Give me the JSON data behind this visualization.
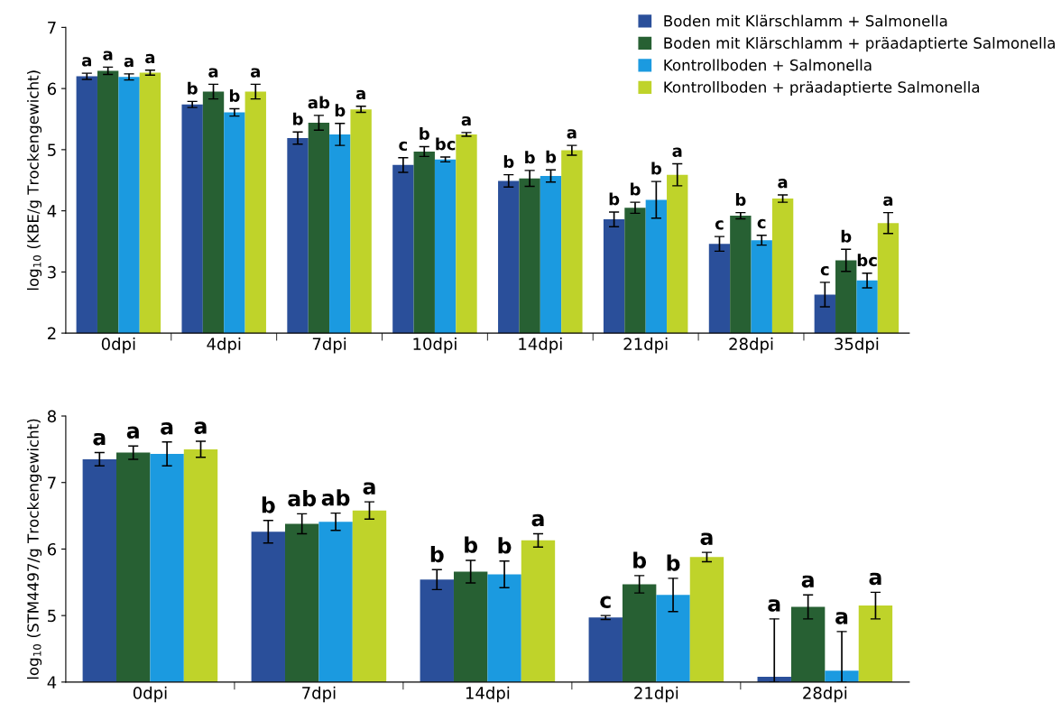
{
  "chart_data": [
    {
      "type": "bar",
      "ylabel": "log$_{10}$ (KBE/g Trockengewicht)",
      "categories": [
        "0dpi",
        "4dpi",
        "7dpi",
        "10dpi",
        "14dpi",
        "21dpi",
        "28dpi",
        "35dpi"
      ],
      "ylim": [
        2,
        7
      ],
      "yticks": [
        2,
        3,
        4,
        5,
        6,
        7
      ],
      "grid": false,
      "legend": "top right",
      "series": [
        {
          "name": "Boden mit Klärschlamm + Salmonella",
          "color": "#2a4f9a",
          "values": [
            6.2,
            5.74,
            5.19,
            4.75,
            4.49,
            3.86,
            3.46,
            2.63
          ],
          "errors": [
            0.05,
            0.05,
            0.1,
            0.12,
            0.1,
            0.12,
            0.12,
            0.2
          ]
        },
        {
          "name": "Boden mit Klärschlamm + präadaptierte Salmonella",
          "color": "#276033",
          "values": [
            6.29,
            5.95,
            5.44,
            4.97,
            4.53,
            4.05,
            3.92,
            3.19
          ],
          "errors": [
            0.06,
            0.12,
            0.12,
            0.08,
            0.13,
            0.09,
            0.05,
            0.18
          ]
        },
        {
          "name": "Kontrollboden + Salmonella",
          "color": "#1b9ae0",
          "values": [
            6.19,
            5.61,
            5.25,
            4.84,
            4.57,
            4.18,
            3.52,
            2.86
          ],
          "errors": [
            0.05,
            0.06,
            0.18,
            0.04,
            0.1,
            0.3,
            0.08,
            0.12
          ]
        },
        {
          "name": "Kontrollboden + präadaptierte Salmonella",
          "color": "#bfd32a",
          "values": [
            6.26,
            5.95,
            5.66,
            5.25,
            4.99,
            4.59,
            4.2,
            3.8
          ],
          "errors": [
            0.04,
            0.12,
            0.05,
            0.03,
            0.08,
            0.18,
            0.06,
            0.17
          ]
        }
      ],
      "annotations": [
        "a",
        "a",
        "a",
        "a",
        "b",
        "a",
        "b",
        "a",
        "b",
        "ab",
        "b",
        "a",
        "c",
        "b",
        "bc",
        "a",
        "b",
        "b",
        "b",
        "a",
        "b",
        "b",
        "b",
        "a",
        "c",
        "b",
        "c",
        "a",
        "c",
        "b",
        "bc",
        "a"
      ]
    },
    {
      "type": "bar",
      "ylabel": "log$_{10}$ (STM4497/g Trockengewicht)",
      "categories": [
        "0dpi",
        "7dpi",
        "14dpi",
        "21dpi",
        "28dpi"
      ],
      "ylim": [
        4,
        8
      ],
      "yticks": [
        4,
        5,
        6,
        7,
        8
      ],
      "grid": false,
      "legend": false,
      "series": [
        {
          "color": "#2a4f9a",
          "values": [
            7.35,
            6.26,
            5.54,
            4.97,
            4.08
          ],
          "errors": [
            0.1,
            0.17,
            0.15,
            0.03,
            [
              4.0,
              4.95
            ]
          ]
        },
        {
          "color": "#276033",
          "values": [
            7.45,
            6.38,
            5.66,
            5.47,
            5.13
          ],
          "errors": [
            0.1,
            0.15,
            0.17,
            0.13,
            0.18
          ]
        },
        {
          "color": "#1b9ae0",
          "values": [
            7.43,
            6.41,
            5.62,
            5.31,
            4.17
          ],
          "errors": [
            0.18,
            0.13,
            0.2,
            0.25,
            [
              4.0,
              4.76
            ]
          ]
        },
        {
          "color": "#bfd32a",
          "values": [
            7.5,
            6.58,
            6.13,
            5.88,
            5.15
          ],
          "errors": [
            0.12,
            0.13,
            0.1,
            0.07,
            0.2
          ]
        }
      ],
      "annotations": [
        "a",
        "a",
        "a",
        "a",
        "b",
        "ab",
        "ab",
        "a",
        "b",
        "b",
        "b",
        "a",
        "c",
        "b",
        "b",
        "a",
        "a",
        "a",
        "a",
        "a"
      ]
    }
  ]
}
